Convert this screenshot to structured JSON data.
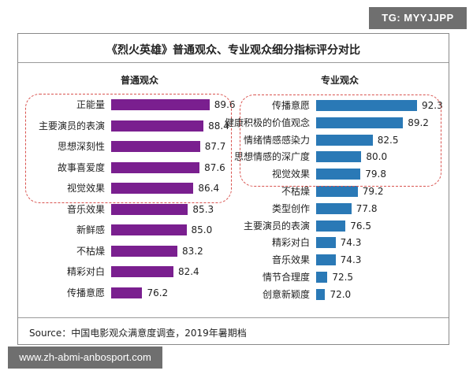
{
  "tag_text": "TG: MYYJJPP",
  "watermark_text": "www.zh-abmi-anbosport.com",
  "source": "Source：中国电影观众满意度调查，2019年暑期档",
  "colors": {
    "general_bar": "#7a1f8f",
    "professional_bar": "#2a79b6",
    "highlight": "#d9534f"
  },
  "chart_data": {
    "type": "bar",
    "title": "《烈火英雄》普通观众、专业观众细分指标评分对比",
    "panels": [
      {
        "name": "普通观众",
        "orientation": "horizontal",
        "categories": [
          "正能量",
          "主要演员的表演",
          "思想深刻性",
          "故事喜爱度",
          "视觉效果",
          "音乐效果",
          "新鲜感",
          "不枯燥",
          "精彩对白",
          "传播意愿"
        ],
        "values": [
          89.6,
          88.4,
          87.7,
          87.6,
          86.4,
          85.3,
          85.0,
          83.2,
          82.4,
          76.2
        ],
        "highlighted_top": 5
      },
      {
        "name": "专业观众",
        "orientation": "horizontal",
        "categories": [
          "传播意愿",
          "健康积极的价值观念",
          "情绪情感感染力",
          "思想情感的深广度",
          "视觉效果",
          "不枯燥",
          "类型创作",
          "主要演员的表演",
          "精彩对白",
          "音乐效果",
          "情节合理度",
          "创意新颖度"
        ],
        "values": [
          92.3,
          89.2,
          82.5,
          80.0,
          79.8,
          79.2,
          77.8,
          76.5,
          74.3,
          74.3,
          72.5,
          72.0
        ],
        "highlighted_top": 5
      }
    ]
  }
}
